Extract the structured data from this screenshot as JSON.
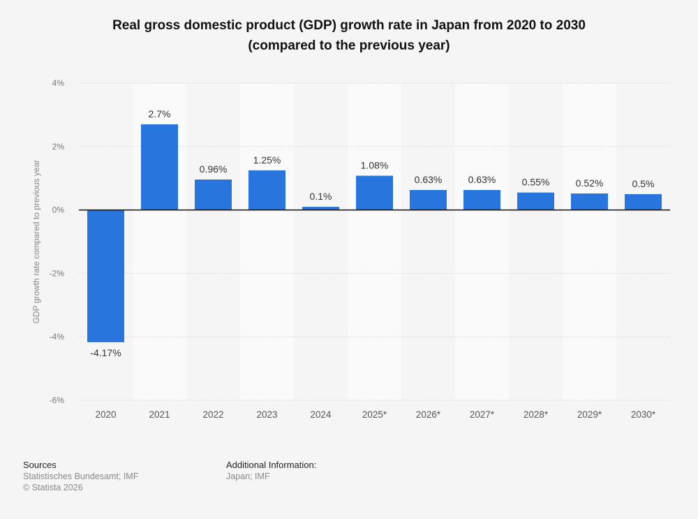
{
  "chart_data": {
    "type": "bar",
    "title": "Real gross domestic product (GDP) growth rate in Japan from 2020 to 2030 (compared to the previous year)",
    "title_lines": [
      "Real gross domestic product (GDP) growth rate in Japan from 2020 to 2030",
      "(compared to the previous year)"
    ],
    "ylabel": "GDP growth rate compared to previous year",
    "xlabel": "",
    "categories": [
      "2020",
      "2021",
      "2022",
      "2023",
      "2024",
      "2025*",
      "2026*",
      "2027*",
      "2028*",
      "2029*",
      "2030*"
    ],
    "values": [
      -4.17,
      2.7,
      0.96,
      1.25,
      0.1,
      1.08,
      0.63,
      0.63,
      0.55,
      0.52,
      0.5
    ],
    "data_labels": [
      "-4.17%",
      "2.7%",
      "0.96%",
      "1.25%",
      "0.1%",
      "1.08%",
      "0.63%",
      "0.63%",
      "0.55%",
      "0.52%",
      "0.5%"
    ],
    "ylim": [
      -6,
      4
    ],
    "yticks": [
      4,
      2,
      0,
      -2,
      -4,
      -6
    ],
    "ytick_labels": [
      "4%",
      "2%",
      "0%",
      "-2%",
      "-4%",
      "-6%"
    ],
    "grid": true,
    "bar_color": "#2876dd"
  },
  "footer": {
    "sources_heading": "Sources",
    "sources": "Statistisches Bundesamt; IMF",
    "copyright": "© Statista 2026",
    "additional_heading": "Additional Information:",
    "additional": "Japan; IMF"
  }
}
